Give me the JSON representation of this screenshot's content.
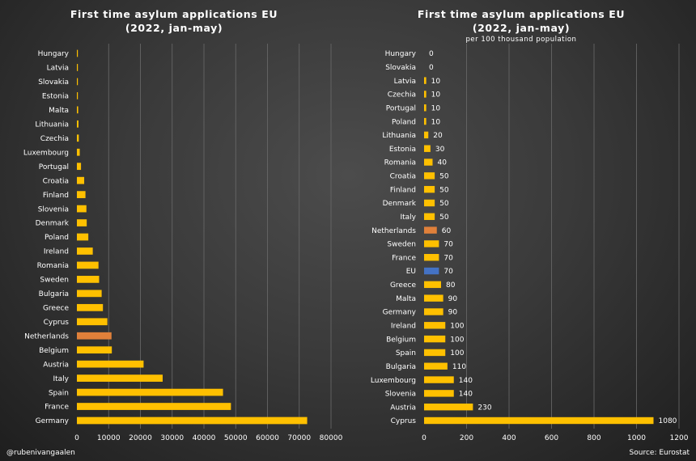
{
  "credit": "@rubenivangaalen",
  "source": "Source: Eurostat",
  "colors": {
    "default": "#FFC000",
    "netherlands": "#E0803A",
    "eu": "#4472C4"
  },
  "chart_data": [
    {
      "type": "bar",
      "orientation": "horizontal",
      "title": "First time asylum applications EU",
      "title2": "(2022, jan-may)",
      "subtitle": "",
      "xlim": [
        0,
        80000
      ],
      "xticks": [
        0,
        10000,
        20000,
        30000,
        40000,
        50000,
        60000,
        70000,
        80000
      ],
      "grid": true,
      "data_labels": false,
      "categories": [
        "Hungary",
        "Latvia",
        "Slovakia",
        "Estonia",
        "Malta",
        "Lithuania",
        "Czechia",
        "Luxembourg",
        "Portugal",
        "Croatia",
        "Finland",
        "Slovenia",
        "Denmark",
        "Poland",
        "Ireland",
        "Romania",
        "Sweden",
        "Bulgaria",
        "Greece",
        "Cyprus",
        "Netherlands",
        "Belgium",
        "Austria",
        "Italy",
        "Spain",
        "France",
        "Germany"
      ],
      "values": [
        10,
        150,
        200,
        250,
        400,
        500,
        600,
        900,
        1300,
        2300,
        2700,
        3000,
        3100,
        3600,
        5000,
        6800,
        7000,
        7800,
        8200,
        9600,
        10900,
        11000,
        21000,
        27000,
        46000,
        48500,
        72500
      ],
      "highlights": {
        "Netherlands": "netherlands"
      }
    },
    {
      "type": "bar",
      "orientation": "horizontal",
      "title": "First time asylum applications EU",
      "title2": "(2022, jan-may)",
      "subtitle": "per 100 thousand population",
      "xlim": [
        0,
        1200
      ],
      "xticks": [
        0,
        200,
        400,
        600,
        800,
        1000,
        1200
      ],
      "grid": true,
      "data_labels": true,
      "categories": [
        "Hungary",
        "Slovakia",
        "Latvia",
        "Czechia",
        "Portugal",
        "Poland",
        "Lithuania",
        "Estonia",
        "Romania",
        "Croatia",
        "Finland",
        "Denmark",
        "Italy",
        "Netherlands",
        "Sweden",
        "France",
        "EU",
        "Greece",
        "Malta",
        "Germany",
        "Ireland",
        "Belgium",
        "Spain",
        "Bulgaria",
        "Luxembourg",
        "Slovenia",
        "Austria",
        "Cyprus"
      ],
      "values": [
        0,
        0,
        10,
        10,
        10,
        10,
        20,
        30,
        40,
        50,
        50,
        50,
        50,
        60,
        70,
        70,
        70,
        80,
        90,
        90,
        100,
        100,
        100,
        110,
        140,
        140,
        230,
        1080
      ],
      "highlights": {
        "Netherlands": "netherlands",
        "EU": "eu"
      }
    }
  ]
}
